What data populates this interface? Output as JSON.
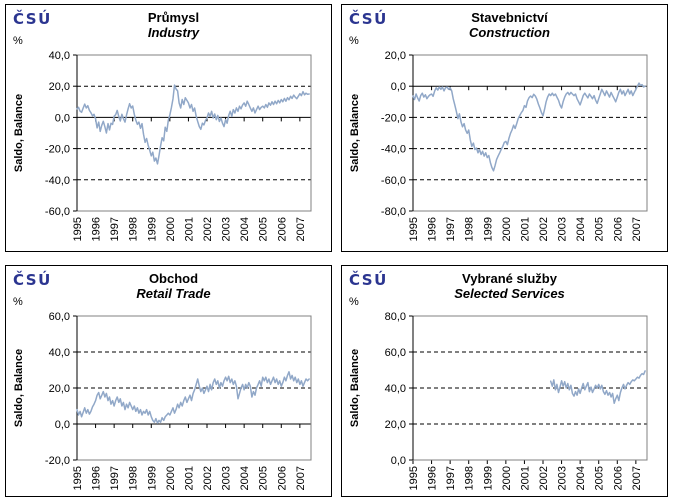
{
  "colors": {
    "line": "#91A8C8",
    "logo": "#2B3590",
    "plot_border": "#808080",
    "axis": "#000000"
  },
  "chart_data": [
    {
      "id": "industry",
      "type": "line",
      "logo": "ČSÚ",
      "unit_label": "%",
      "title": "Průmysl",
      "subtitle": "Industry",
      "ylabel": "Saldo, Balance",
      "ylim": [
        -60,
        40
      ],
      "ystep": 20,
      "y_tick_labels": [
        "40,0",
        "20,0",
        "0,0",
        "-20,0",
        "-40,0",
        "-60,0"
      ],
      "x_tick_labels": [
        "1995",
        "1996",
        "1997",
        "1998",
        "1999",
        "2000",
        "2001",
        "2002",
        "2003",
        "2004",
        "2005",
        "2006",
        "2007"
      ],
      "x_domain": [
        1995,
        2007.6
      ],
      "series_start": 1995.0,
      "values": [
        5.5,
        6.5,
        4,
        3.3,
        6,
        8.5,
        6,
        7.5,
        4.5,
        3,
        1,
        2,
        -1,
        -6.7,
        -3,
        -9,
        -5,
        -2.5,
        -6,
        -10,
        -4,
        -8,
        -3.8,
        -4.5,
        0.7,
        1.8,
        4.5,
        0.5,
        -2.3,
        2,
        -0.8,
        -3,
        1.5,
        5.5,
        8.8,
        6,
        7.3,
        2,
        -1.7,
        -4.5,
        -3,
        -7,
        -4,
        -10.7,
        -16,
        -13.5,
        -18,
        -21,
        -24.7,
        -22.3,
        -28,
        -26,
        -29.8,
        -24.5,
        -18.3,
        -13,
        -15,
        -6.3,
        -9,
        -2,
        1.7,
        6.3,
        12,
        20.7,
        18.3,
        17,
        9.3,
        6,
        11.5,
        8.3,
        12.6,
        10.9,
        9.3,
        6,
        8.3,
        3.9,
        6,
        0.7,
        -2.6,
        -5.9,
        -7.6,
        -3.7,
        -4.8,
        -2,
        -0.4,
        2.8,
        0.7,
        3.9,
        -0.4,
        2.2,
        -1.5,
        1.3,
        -2.6,
        -0.4,
        -3.7,
        -5.9,
        -1.5,
        -3.7,
        1.3,
        3.9,
        0.7,
        5,
        2.8,
        6.1,
        3.9,
        7.2,
        5.5,
        8,
        9.3,
        7.2,
        10.4,
        8.3,
        6.1,
        3.9,
        6.1,
        2.8,
        5,
        7.2,
        5,
        6.5,
        7.2,
        6.1,
        8.3,
        6.5,
        9.3,
        7.8,
        10,
        8.3,
        10.4,
        8.7,
        10.9,
        9.3,
        11.5,
        10,
        12.2,
        10.4,
        12.6,
        11.3,
        13.5,
        12.2,
        14.3,
        13,
        12,
        13.5,
        15.2,
        14,
        16.5,
        14.5,
        15.5,
        14.8,
        15
      ]
    },
    {
      "id": "construction",
      "type": "line",
      "logo": "ČSÚ",
      "unit_label": "%",
      "title": "Stavebnictví",
      "subtitle": "Construction",
      "ylabel": "Saldo, Balance",
      "ylim": [
        -80,
        20
      ],
      "ystep": 20,
      "y_tick_labels": [
        "20,0",
        "0,0",
        "-20,0",
        "-40,0",
        "-60,0",
        "-80,0"
      ],
      "x_tick_labels": [
        "1995",
        "1996",
        "1997",
        "1998",
        "1999",
        "2000",
        "2001",
        "2002",
        "2003",
        "2004",
        "2005",
        "2006",
        "2007"
      ],
      "x_domain": [
        1995,
        2007.6
      ],
      "series_start": 1995.0,
      "values": [
        -6.3,
        -8.5,
        -5,
        -7.5,
        -9.5,
        -6,
        -4.5,
        -7,
        -5.5,
        -8,
        -6.5,
        -5.5,
        -5,
        -6.5,
        -3,
        -1,
        -2.5,
        -0.5,
        -2,
        -0.5,
        -3,
        -1,
        -0.5,
        -2,
        -1,
        -3,
        -8,
        -12,
        -16,
        -20.8,
        -17.7,
        -22.9,
        -26,
        -24,
        -28,
        -30.2,
        -28.1,
        -34.4,
        -38.5,
        -36.5,
        -40.6,
        -39.6,
        -42.7,
        -40.6,
        -43.8,
        -41.7,
        -44.8,
        -42.7,
        -45.8,
        -44.4,
        -49,
        -52.1,
        -54.2,
        -51,
        -46.9,
        -44.8,
        -42.7,
        -40.5,
        -38.5,
        -36,
        -35.4,
        -37.5,
        -33.3,
        -30.2,
        -28.1,
        -25,
        -27.1,
        -24,
        -20.8,
        -18.8,
        -17,
        -15.6,
        -12.5,
        -13.5,
        -9.4,
        -7.3,
        -6.3,
        -7.3,
        -5.2,
        -6.3,
        -8.3,
        -11.5,
        -14,
        -17,
        -19,
        -15,
        -10,
        -7,
        -5,
        -6,
        -4.5,
        -6,
        -5,
        -7,
        -9,
        -12,
        -14,
        -10,
        -7,
        -5,
        -4,
        -5.5,
        -4,
        -5,
        -6,
        -5,
        -8,
        -10,
        -12,
        -9,
        -6,
        -4.5,
        -6,
        -7.5,
        -5,
        -6.5,
        -8,
        -6,
        -9,
        -11,
        -8,
        -5,
        -2,
        -4,
        -6,
        -3,
        -5,
        -7,
        -4,
        -6,
        -8,
        -10,
        -7,
        -4,
        -2,
        -5,
        -3,
        -6,
        -4,
        -2,
        -5,
        -3,
        -6,
        -4,
        -2,
        0,
        2,
        0.5,
        1,
        -0.5,
        0
      ]
    },
    {
      "id": "retail-trade",
      "type": "line",
      "logo": "ČSÚ",
      "unit_label": "%",
      "title": "Obchod",
      "subtitle": "Retail Trade",
      "ylabel": "Saldo, Balance",
      "ylim": [
        -20,
        60
      ],
      "ystep": 20,
      "y_tick_labels": [
        "60,0",
        "40,0",
        "20,0",
        "0,0",
        "-20,0"
      ],
      "x_tick_labels": [
        "1995",
        "1996",
        "1997",
        "1998",
        "1999",
        "2000",
        "2001",
        "2002",
        "2003",
        "2004",
        "2005",
        "2006",
        "2007"
      ],
      "x_domain": [
        1995,
        2007.6
      ],
      "series_start": 1995.0,
      "values": [
        8,
        5,
        7,
        4,
        6.5,
        9,
        6,
        8,
        5.5,
        7,
        9.5,
        11,
        13,
        16,
        17.5,
        14,
        16,
        18,
        15,
        17,
        13,
        15,
        11,
        13,
        10,
        13,
        15,
        12,
        14,
        10,
        12,
        8,
        11,
        9,
        12,
        10,
        8,
        10,
        7,
        9,
        6,
        8,
        5,
        7,
        6,
        8,
        5,
        7,
        4,
        2,
        1,
        3,
        0.5,
        2,
        1,
        3.5,
        2,
        4,
        5,
        6,
        5,
        7,
        9,
        6,
        8,
        11,
        9,
        12,
        10,
        13,
        15,
        12,
        14,
        16,
        13,
        17,
        19,
        22,
        25,
        21,
        18,
        20,
        17,
        19,
        21,
        18,
        22,
        19,
        23,
        25,
        22,
        24,
        20,
        23,
        21,
        24,
        26,
        24,
        26.5,
        23,
        25,
        22,
        24,
        21,
        14,
        17,
        20,
        22,
        19,
        22,
        20,
        23,
        21,
        15,
        18,
        16,
        20,
        22,
        24,
        21,
        26,
        24,
        26,
        23,
        25,
        22,
        24,
        26,
        23,
        25,
        22,
        24,
        21,
        23,
        26,
        24,
        27,
        29,
        25,
        27,
        24,
        26,
        23,
        25,
        22,
        24,
        21,
        23,
        25,
        24,
        25
      ]
    },
    {
      "id": "selected-services",
      "type": "line",
      "logo": "ČSÚ",
      "unit_label": "%",
      "title": "Vybrané služby",
      "subtitle": "Selected Services",
      "ylabel": "Saldo, Balance",
      "ylim": [
        0,
        80
      ],
      "ystep": 20,
      "y_tick_labels": [
        "80,0",
        "60,0",
        "40,0",
        "20,0",
        "0,0"
      ],
      "x_tick_labels": [
        "1995",
        "1996",
        "1997",
        "1998",
        "1999",
        "2000",
        "2001",
        "2002",
        "2003",
        "2004",
        "2005",
        "2006",
        "2007"
      ],
      "x_domain": [
        1995,
        2007.6
      ],
      "series_start": 2002.417,
      "values": [
        43.8,
        41,
        44.5,
        39,
        42,
        37.5,
        40.5,
        44,
        41,
        43.5,
        40,
        42.5,
        39,
        41.5,
        37,
        35.5,
        38,
        36,
        39.5,
        37,
        40,
        42.5,
        39,
        41,
        43,
        38,
        40.5,
        37.5,
        39.5,
        41.5,
        40,
        42,
        39.5,
        41.5,
        38,
        36.5,
        38.5,
        36,
        37.5,
        35,
        37,
        31.5,
        34,
        36,
        33,
        37.5,
        40,
        42,
        39.5,
        41.5,
        43,
        42,
        43.5,
        44.5,
        44,
        45,
        46,
        45.5,
        47,
        48,
        47.5,
        49.5
      ]
    }
  ]
}
